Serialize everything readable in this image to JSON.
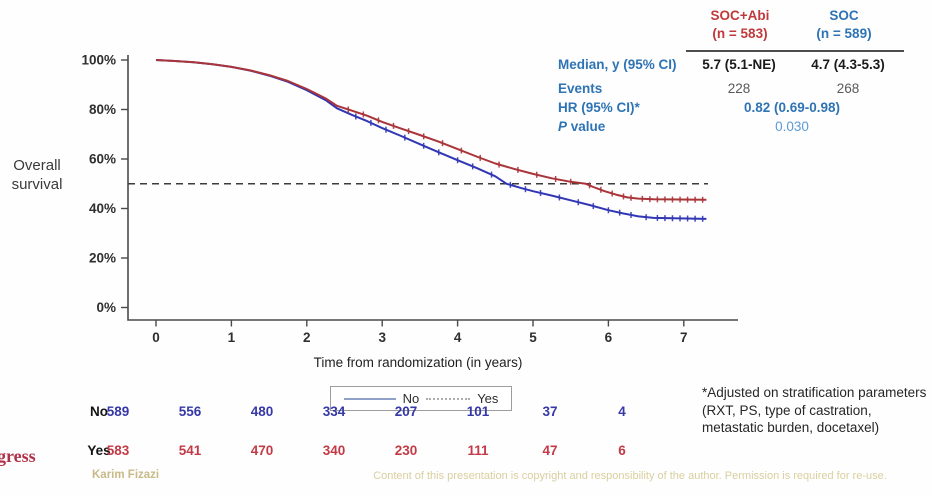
{
  "slide": {
    "y_axis_label": "Overall survival",
    "watermark_fragment": "gress",
    "author": "Karim Fizazi",
    "copyright_notice": "Content of this presentation is copyright and responsibility of the author. Permission is required for re-use.",
    "footnote": "*Adjusted on stratification parameters (RXT, PS, type of castration, metastatic burden, docetaxel)"
  },
  "stats_panel": {
    "columns": [
      {
        "header": "SOC+Abi",
        "n": "(n = 583)",
        "color": "#c0393b"
      },
      {
        "header": "SOC",
        "n": "(n = 589)",
        "color": "#2e74b5"
      }
    ],
    "median_label": "Median, y (95% CI)",
    "median_values": [
      "5.7 (5.1-NE)",
      "4.7 (4.3-5.3)"
    ],
    "events_label": "Events",
    "events_values": [
      "228",
      "268"
    ],
    "hr_label": "HR (95% CI)*",
    "hr_value": "0.82 (0.69-0.98)",
    "p_label": "P value",
    "p_value": "0.030"
  },
  "legend": {
    "no_label": "No",
    "yes_label": "Yes"
  },
  "risk_table": {
    "rows": [
      {
        "label": "No",
        "color": "#3538a6",
        "counts": [
          "589",
          "556",
          "480",
          "334",
          "207",
          "101",
          "37",
          "4"
        ]
      },
      {
        "label": "Yes",
        "color": "#c23a46",
        "counts": [
          "583",
          "541",
          "470",
          "340",
          "230",
          "111",
          "47",
          "6"
        ]
      }
    ]
  },
  "chart_data": {
    "type": "line",
    "subtype": "kaplan-meier",
    "title": "",
    "xlabel": "Time from randomization (in years)",
    "ylabel": "Overall survival",
    "xlim": [
      0,
      7.6
    ],
    "ylim": [
      0,
      100
    ],
    "x_ticks": [
      0,
      1,
      2,
      3,
      4,
      5,
      6,
      7
    ],
    "y_ticks": [
      100,
      80,
      60,
      40,
      20,
      0
    ],
    "y_tick_labels": [
      "100%",
      "80%",
      "60%",
      "40%",
      "20%",
      "0%"
    ],
    "reference_line": {
      "y": 50,
      "style": "dashed",
      "color": "#3b3b3b"
    },
    "legend_position": "bottom",
    "grid": false,
    "series": [
      {
        "name": "Yes (SOC+Abi)",
        "color": "#a93439",
        "median_years": 5.7,
        "points": [
          [
            0,
            100
          ],
          [
            0.25,
            99.6
          ],
          [
            0.5,
            99.1
          ],
          [
            0.75,
            98.3
          ],
          [
            1,
            97.2
          ],
          [
            1.25,
            95.8
          ],
          [
            1.5,
            93.9
          ],
          [
            1.75,
            91.5
          ],
          [
            2,
            88.3
          ],
          [
            2.25,
            84.5
          ],
          [
            2.4,
            81.5
          ],
          [
            2.6,
            79.5
          ],
          [
            2.8,
            77.5
          ],
          [
            3,
            75
          ],
          [
            3.25,
            72.3
          ],
          [
            3.5,
            69.7
          ],
          [
            3.75,
            67
          ],
          [
            4,
            64
          ],
          [
            4.25,
            61
          ],
          [
            4.5,
            58.2
          ],
          [
            4.75,
            56
          ],
          [
            5,
            54
          ],
          [
            5.25,
            52.2
          ],
          [
            5.5,
            50.8
          ],
          [
            5.7,
            50
          ],
          [
            5.8,
            48.7
          ],
          [
            5.95,
            47
          ],
          [
            6.1,
            45.6
          ],
          [
            6.25,
            44.5
          ],
          [
            6.4,
            44
          ],
          [
            6.6,
            43.7
          ],
          [
            7.3,
            43.5
          ]
        ],
        "censor_ticks": [
          2.55,
          2.75,
          2.95,
          3.15,
          3.35,
          3.55,
          3.8,
          4.05,
          4.3,
          4.55,
          4.8,
          5.05,
          5.3,
          5.5,
          5.75,
          5.9,
          6.05,
          6.2,
          6.3,
          6.45,
          6.55,
          6.65,
          6.75,
          6.85,
          6.95,
          7.05,
          7.15,
          7.25
        ]
      },
      {
        "name": "No (SOC)",
        "color": "#3136b4",
        "median_years": 4.7,
        "points": [
          [
            0,
            100
          ],
          [
            0.25,
            99.6
          ],
          [
            0.5,
            99.1
          ],
          [
            0.75,
            98.3
          ],
          [
            1,
            97.2
          ],
          [
            1.25,
            95.7
          ],
          [
            1.5,
            93.7
          ],
          [
            1.75,
            91.2
          ],
          [
            2,
            87.8
          ],
          [
            2.25,
            83.8
          ],
          [
            2.4,
            80.5
          ],
          [
            2.6,
            77.8
          ],
          [
            2.8,
            75.3
          ],
          [
            3,
            72.5
          ],
          [
            3.25,
            69.3
          ],
          [
            3.5,
            66
          ],
          [
            3.75,
            62.7
          ],
          [
            4,
            59.5
          ],
          [
            4.25,
            56.4
          ],
          [
            4.5,
            53
          ],
          [
            4.65,
            50
          ],
          [
            4.85,
            48.2
          ],
          [
            5,
            47
          ],
          [
            5.25,
            45.2
          ],
          [
            5.5,
            43.3
          ],
          [
            5.75,
            41.4
          ],
          [
            6,
            39.3
          ],
          [
            6.2,
            38
          ],
          [
            6.4,
            36.8
          ],
          [
            6.6,
            36.2
          ],
          [
            7.3,
            35.8
          ]
        ],
        "censor_ticks": [
          2.65,
          2.85,
          3.05,
          3.3,
          3.55,
          3.75,
          4.0,
          4.2,
          4.45,
          4.7,
          4.9,
          5.1,
          5.35,
          5.6,
          5.8,
          6.0,
          6.15,
          6.3,
          6.5,
          6.65,
          6.75,
          6.85,
          6.95,
          7.05,
          7.15,
          7.25
        ]
      }
    ]
  }
}
